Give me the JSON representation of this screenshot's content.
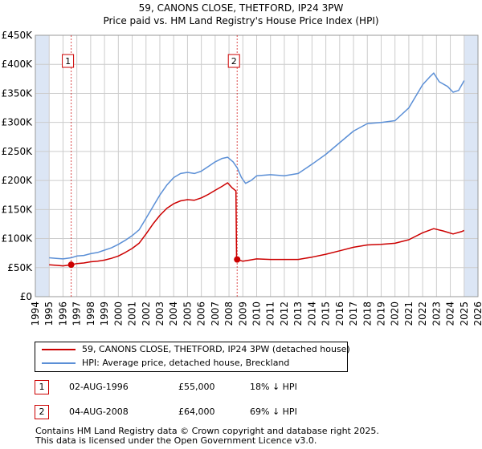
{
  "title_line1": "59, CANONS CLOSE, THETFORD, IP24 3PW",
  "title_line2": "Price paid vs. HM Land Registry's House Price Index (HPI)",
  "colors": {
    "property": "#cc0000",
    "hpi": "#5b8fd6",
    "shade": "#dce6f5",
    "grid": "#cccccc",
    "marker_border": "#cc0000"
  },
  "chart_data": {
    "type": "line",
    "xlim": [
      1994,
      2026
    ],
    "ylim": [
      0,
      450000
    ],
    "y_ticks": [
      0,
      50000,
      100000,
      150000,
      200000,
      250000,
      300000,
      350000,
      400000,
      450000
    ],
    "y_tick_labels": [
      "£0",
      "£50K",
      "£100K",
      "£150K",
      "£200K",
      "£250K",
      "£300K",
      "£350K",
      "£400K",
      "£450K"
    ],
    "x_tick_labels": [
      "1994",
      "1995",
      "1996",
      "1997",
      "1998",
      "1999",
      "2000",
      "2001",
      "2002",
      "2003",
      "2004",
      "2005",
      "2006",
      "2007",
      "2008",
      "2009",
      "2010",
      "2011",
      "2012",
      "2013",
      "2014",
      "2015",
      "2016",
      "2017",
      "2018",
      "2019",
      "2020",
      "2021",
      "2022",
      "2023",
      "2024",
      "2025",
      "2026"
    ],
    "shaded_ranges": [
      [
        1994,
        1995
      ],
      [
        2025,
        2026
      ]
    ],
    "series": [
      {
        "name": "59, CANONS CLOSE, THETFORD, IP24 3PW (detached house)",
        "points": [
          [
            1995.0,
            55000
          ],
          [
            1995.5,
            54000
          ],
          [
            1996.0,
            53000
          ],
          [
            1996.59,
            55000
          ],
          [
            1997.0,
            57000
          ],
          [
            1997.5,
            58000
          ],
          [
            1998.0,
            60000
          ],
          [
            1998.5,
            61000
          ],
          [
            1999.0,
            63000
          ],
          [
            1999.5,
            66000
          ],
          [
            2000.0,
            70000
          ],
          [
            2000.5,
            76000
          ],
          [
            2001.0,
            83000
          ],
          [
            2001.5,
            92000
          ],
          [
            2002.0,
            108000
          ],
          [
            2002.5,
            125000
          ],
          [
            2003.0,
            140000
          ],
          [
            2003.5,
            152000
          ],
          [
            2004.0,
            160000
          ],
          [
            2004.5,
            165000
          ],
          [
            2005.0,
            167000
          ],
          [
            2005.5,
            166000
          ],
          [
            2006.0,
            170000
          ],
          [
            2006.5,
            176000
          ],
          [
            2007.0,
            183000
          ],
          [
            2007.5,
            190000
          ],
          [
            2007.9,
            196000
          ],
          [
            2008.2,
            188000
          ],
          [
            2008.5,
            182000
          ],
          [
            2008.55,
            64000
          ],
          [
            2008.59,
            64000
          ],
          [
            2009.0,
            61000
          ],
          [
            2009.5,
            63000
          ],
          [
            2010.0,
            65000
          ],
          [
            2011.0,
            64000
          ],
          [
            2012.0,
            64000
          ],
          [
            2013.0,
            64000
          ],
          [
            2014.0,
            68000
          ],
          [
            2015.0,
            73000
          ],
          [
            2016.0,
            79000
          ],
          [
            2017.0,
            85000
          ],
          [
            2018.0,
            89000
          ],
          [
            2019.0,
            90000
          ],
          [
            2020.0,
            92000
          ],
          [
            2021.0,
            98000
          ],
          [
            2022.0,
            110000
          ],
          [
            2022.8,
            117000
          ],
          [
            2023.5,
            113000
          ],
          [
            2024.2,
            108000
          ],
          [
            2024.8,
            112000
          ],
          [
            2025.0,
            114000
          ]
        ]
      },
      {
        "name": "HPI: Average price, detached house, Breckland",
        "points": [
          [
            1995.0,
            67000
          ],
          [
            1995.5,
            66000
          ],
          [
            1996.0,
            65000
          ],
          [
            1996.59,
            67000
          ],
          [
            1997.0,
            70000
          ],
          [
            1997.5,
            71000
          ],
          [
            1998.0,
            74000
          ],
          [
            1998.5,
            76000
          ],
          [
            1999.0,
            80000
          ],
          [
            1999.5,
            84000
          ],
          [
            2000.0,
            90000
          ],
          [
            2000.5,
            97000
          ],
          [
            2001.0,
            105000
          ],
          [
            2001.5,
            115000
          ],
          [
            2002.0,
            135000
          ],
          [
            2002.5,
            155000
          ],
          [
            2003.0,
            175000
          ],
          [
            2003.5,
            192000
          ],
          [
            2004.0,
            205000
          ],
          [
            2004.5,
            212000
          ],
          [
            2005.0,
            214000
          ],
          [
            2005.5,
            212000
          ],
          [
            2006.0,
            216000
          ],
          [
            2006.5,
            224000
          ],
          [
            2007.0,
            232000
          ],
          [
            2007.5,
            238000
          ],
          [
            2007.9,
            240000
          ],
          [
            2008.3,
            232000
          ],
          [
            2008.59,
            222000
          ],
          [
            2008.9,
            205000
          ],
          [
            2009.2,
            195000
          ],
          [
            2009.6,
            200000
          ],
          [
            2010.0,
            208000
          ],
          [
            2011.0,
            210000
          ],
          [
            2012.0,
            208000
          ],
          [
            2013.0,
            212000
          ],
          [
            2014.0,
            228000
          ],
          [
            2015.0,
            245000
          ],
          [
            2016.0,
            265000
          ],
          [
            2017.0,
            285000
          ],
          [
            2018.0,
            298000
          ],
          [
            2019.0,
            300000
          ],
          [
            2020.0,
            303000
          ],
          [
            2021.0,
            325000
          ],
          [
            2021.5,
            345000
          ],
          [
            2022.0,
            365000
          ],
          [
            2022.5,
            378000
          ],
          [
            2022.8,
            385000
          ],
          [
            2023.2,
            370000
          ],
          [
            2023.8,
            362000
          ],
          [
            2024.2,
            352000
          ],
          [
            2024.6,
            355000
          ],
          [
            2025.0,
            372000
          ]
        ]
      }
    ],
    "sale_markers": [
      {
        "label": "1",
        "x": 1996.59,
        "y": 55000
      },
      {
        "label": "2",
        "x": 2008.59,
        "y": 64000
      }
    ]
  },
  "legend": {
    "property_label": "59, CANONS CLOSE, THETFORD, IP24 3PW (detached house)",
    "hpi_label": "HPI: Average price, detached house, Breckland"
  },
  "sales": [
    {
      "num": "1",
      "date": "02-AUG-1996",
      "price": "£55,000",
      "hpi": "18% ↓ HPI"
    },
    {
      "num": "2",
      "date": "04-AUG-2008",
      "price": "£64,000",
      "hpi": "69% ↓ HPI"
    }
  ],
  "footer": {
    "line1": "Contains HM Land Registry data © Crown copyright and database right 2025.",
    "line2": "This data is licensed under the Open Government Licence v3.0."
  }
}
